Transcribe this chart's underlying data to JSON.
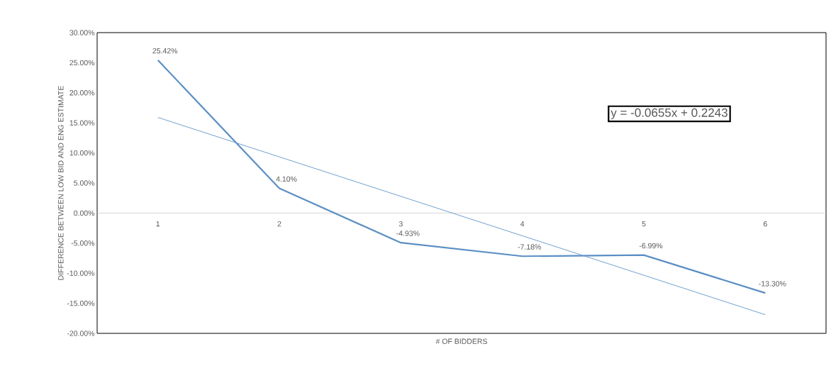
{
  "chart_data": {
    "type": "line",
    "xlabel": "# OF BIDDERS",
    "ylabel": "DIFFERENCE BETWEEN LOW BID AND ENG ESTIMATE",
    "xlim": [
      0.5,
      6.5
    ],
    "xticks": [
      1,
      2,
      3,
      4,
      5,
      6
    ],
    "ylim": [
      -20,
      30
    ],
    "yticks": [
      {
        "value": -20,
        "label": "-20.00%"
      },
      {
        "value": -15,
        "label": "-15.00%"
      },
      {
        "value": -10,
        "label": "-10.00%"
      },
      {
        "value": -5,
        "label": "-5.00%"
      },
      {
        "value": 0,
        "label": "0.00%"
      },
      {
        "value": 5,
        "label": "5.00%"
      },
      {
        "value": 10,
        "label": "10.00%"
      },
      {
        "value": 15,
        "label": "15.00%"
      },
      {
        "value": 20,
        "label": "20.00%"
      },
      {
        "value": 25,
        "label": "25.00%"
      },
      {
        "value": 30,
        "label": "30.00%"
      }
    ],
    "series": [
      {
        "color": "#5b8fc4",
        "x": [
          1,
          2,
          3,
          4,
          5,
          6
        ],
        "values": [
          25.42,
          4.1,
          -4.93,
          -7.18,
          -6.99,
          -13.3
        ],
        "value_labels": [
          "25.42%",
          "4.10%",
          "-4.93%",
          "-7.18%",
          "-6.99%",
          "-13.30%"
        ]
      },
      {
        "type": "line",
        "color": "#6fa0d0",
        "x": [
          1,
          6
        ],
        "values": [
          15.9,
          -16.9
        ]
      }
    ],
    "annotations": [
      "y = -0.0655x + 0.2243"
    ]
  }
}
